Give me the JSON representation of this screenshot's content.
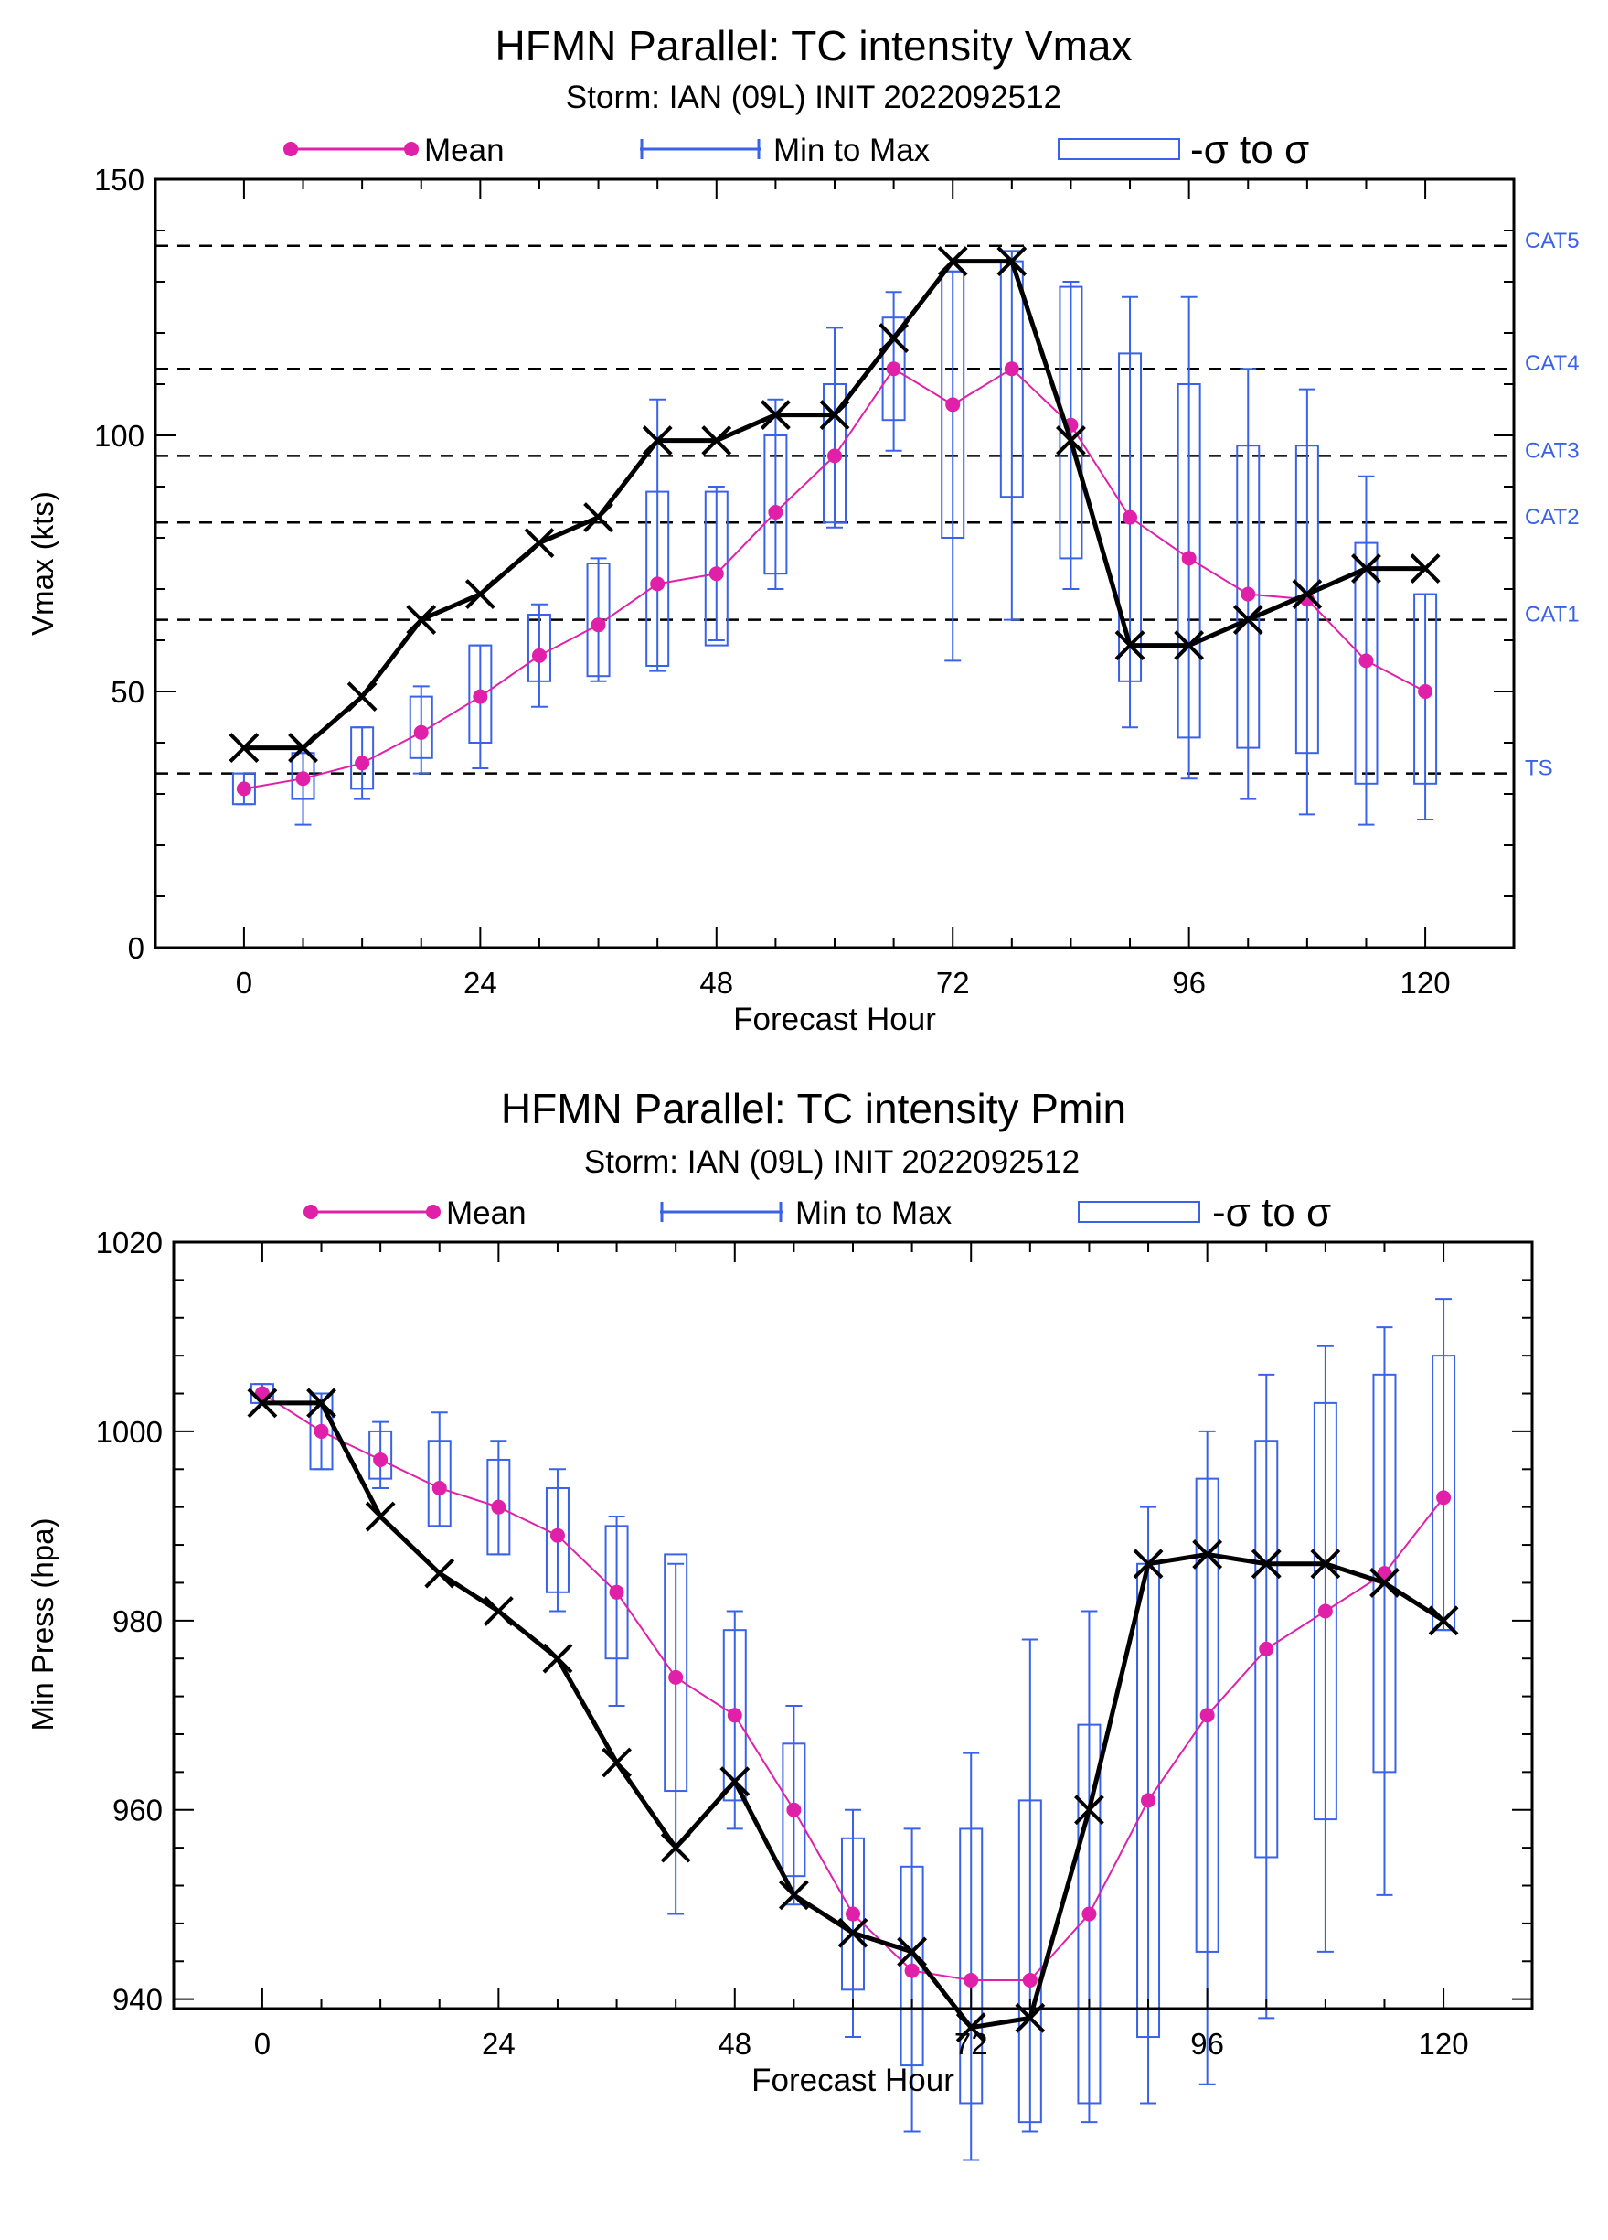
{
  "colors": {
    "mean": "#e020a8",
    "range": "#3a62e8",
    "obs": "#000000",
    "ref": "#000000",
    "ref_label": "#3a62e8"
  },
  "chart_data": [
    {
      "type": "box",
      "title": "HFMN Parallel: TC intensity Vmax",
      "subtitle": "Storm: IAN (09L) INIT 2022092512",
      "xlabel": "Forecast Hour",
      "ylabel": "Vmax (kts)",
      "xlim": [
        -9,
        129
      ],
      "ylim": [
        0,
        150
      ],
      "x_ticks": [
        0,
        24,
        48,
        72,
        96,
        120
      ],
      "y_ticks": [
        0,
        50,
        100,
        150
      ],
      "y_tick_labels": [
        "0",
        "50",
        "100",
        "150"
      ],
      "legend": {
        "mean": "Mean",
        "range": "Min to Max",
        "sigma": "-σ to σ",
        "placement": "top"
      },
      "ref_lines": [
        {
          "label": "TS",
          "value": 34
        },
        {
          "label": "CAT1",
          "value": 64
        },
        {
          "label": "CAT2",
          "value": 83
        },
        {
          "label": "CAT3",
          "value": 96
        },
        {
          "label": "CAT4",
          "value": 113
        },
        {
          "label": "CAT5",
          "value": 137
        }
      ],
      "x": [
        0,
        6,
        12,
        18,
        24,
        30,
        36,
        42,
        48,
        54,
        60,
        66,
        72,
        78,
        84,
        90,
        96,
        102,
        108,
        114,
        120
      ],
      "mean": [
        31,
        33,
        36,
        42,
        49,
        57,
        63,
        71,
        73,
        85,
        96,
        113,
        106,
        113,
        102,
        84,
        76,
        69,
        68,
        56,
        50
      ],
      "min": [
        28,
        24,
        29,
        34,
        35,
        47,
        52,
        54,
        60,
        70,
        82,
        97,
        56,
        64,
        70,
        43,
        33,
        29,
        26,
        24,
        25
      ],
      "max": [
        34,
        38,
        43,
        51,
        59,
        67,
        76,
        107,
        90,
        107,
        121,
        128,
        132,
        136,
        130,
        127,
        127,
        113,
        109,
        92,
        69
      ],
      "sigma_low": [
        28,
        29,
        31,
        37,
        40,
        52,
        53,
        55,
        59,
        73,
        83,
        103,
        80,
        88,
        76,
        52,
        41,
        39,
        38,
        32,
        32
      ],
      "sigma_high": [
        34,
        38,
        43,
        49,
        59,
        65,
        75,
        89,
        89,
        100,
        110,
        123,
        132,
        134,
        129,
        116,
        110,
        98,
        98,
        79,
        69
      ],
      "obs": [
        39,
        39,
        49,
        64,
        69,
        79,
        84,
        99,
        99,
        104,
        104,
        119,
        134,
        134,
        99,
        59,
        59,
        64,
        69,
        74,
        74
      ]
    },
    {
      "type": "box",
      "title": "HFMN Parallel: TC intensity Pmin",
      "subtitle": "Storm: IAN (09L) INIT 2022092512",
      "xlabel": "Forecast Hour",
      "ylabel": "Min Press (hpa)",
      "xlim": [
        -9,
        129
      ],
      "ylim": [
        939,
        1020
      ],
      "x_ticks": [
        0,
        24,
        48,
        72,
        96,
        120
      ],
      "y_ticks": [
        940,
        960,
        980,
        1000,
        1020
      ],
      "y_tick_labels": [
        "940",
        "960",
        "980",
        "1000",
        "1020"
      ],
      "legend": {
        "mean": "Mean",
        "range": "Min to Max",
        "sigma": "-σ to σ",
        "placement": "top"
      },
      "ref_lines": [],
      "x": [
        0,
        6,
        12,
        18,
        24,
        30,
        36,
        42,
        48,
        54,
        60,
        66,
        72,
        78,
        84,
        90,
        96,
        102,
        108,
        114,
        120
      ],
      "mean": [
        1004,
        1000,
        997,
        994,
        992,
        989,
        983,
        974,
        970,
        960,
        949,
        943,
        942,
        942,
        949,
        961,
        970,
        977,
        981,
        985,
        993
      ],
      "min": [
        1003,
        996,
        994,
        990,
        987,
        981,
        971,
        949,
        958,
        950,
        936,
        926,
        923,
        926,
        927,
        929,
        931,
        938,
        945,
        951,
        979
      ],
      "max": [
        1005,
        1004,
        1001,
        1002,
        999,
        996,
        991,
        986,
        981,
        971,
        960,
        958,
        966,
        978,
        981,
        992,
        1000,
        1006,
        1009,
        1011,
        1014
      ],
      "sigma_low": [
        1003,
        996,
        995,
        990,
        987,
        983,
        976,
        962,
        961,
        953,
        941,
        933,
        929,
        927,
        929,
        936,
        945,
        955,
        959,
        964,
        979
      ],
      "sigma_high": [
        1005,
        1004,
        1000,
        999,
        997,
        994,
        990,
        987,
        979,
        967,
        957,
        954,
        958,
        961,
        969,
        986,
        995,
        999,
        1003,
        1006,
        1008
      ],
      "obs": [
        1003,
        1003,
        991,
        985,
        981,
        976,
        965,
        956,
        963,
        951,
        947,
        945,
        937,
        938,
        960,
        986,
        987,
        986,
        986,
        984,
        980
      ]
    }
  ]
}
